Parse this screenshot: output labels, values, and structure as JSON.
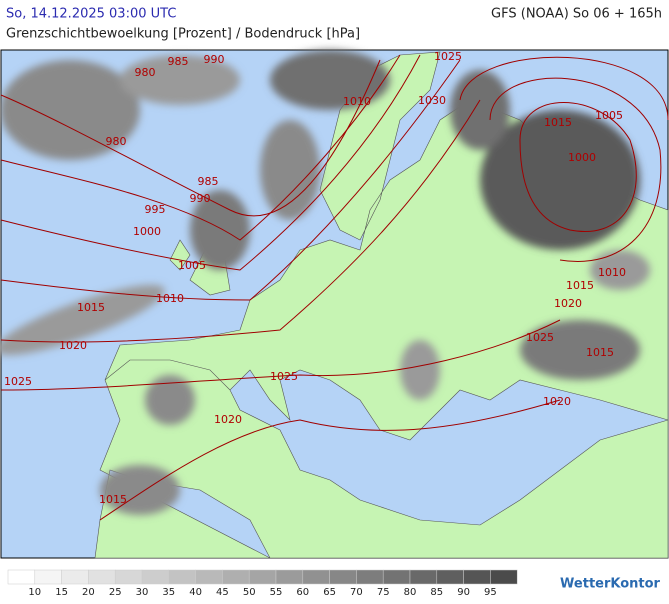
{
  "header": {
    "left": "So, 14.12.2025 03:00 UTC",
    "right": "GFS (NOAA) So 06 + 165h",
    "subtitle": "Grenzschichtbewoelkung [Prozent] / Bodendruck [hPa]"
  },
  "isobar_labels": [
    "985",
    "990",
    "980",
    "1025",
    "1010",
    "1030",
    "1015",
    "1005",
    "980",
    "1000",
    "985",
    "990",
    "995",
    "1000",
    "1005",
    "1010",
    "1010",
    "1015",
    "1020",
    "1015",
    "1020",
    "1025",
    "1015",
    "1025",
    "1025",
    "1020",
    "1020",
    "1015"
  ],
  "legend": {
    "ticks": [
      10,
      15,
      20,
      25,
      30,
      35,
      40,
      45,
      50,
      55,
      60,
      65,
      70,
      75,
      80,
      85,
      90,
      95
    ],
    "colors": [
      "#ffffff",
      "#f5f5f5",
      "#ebebeb",
      "#e1e1e1",
      "#d7d7d7",
      "#cdcdcd",
      "#c3c3c3",
      "#b9b9b9",
      "#afafaf",
      "#a5a5a5",
      "#9b9b9b",
      "#919191",
      "#878787",
      "#7d7d7d",
      "#737373",
      "#696969",
      "#5f5f5f",
      "#555555",
      "#4b4b4b"
    ]
  },
  "logo": "WetterKontor"
}
